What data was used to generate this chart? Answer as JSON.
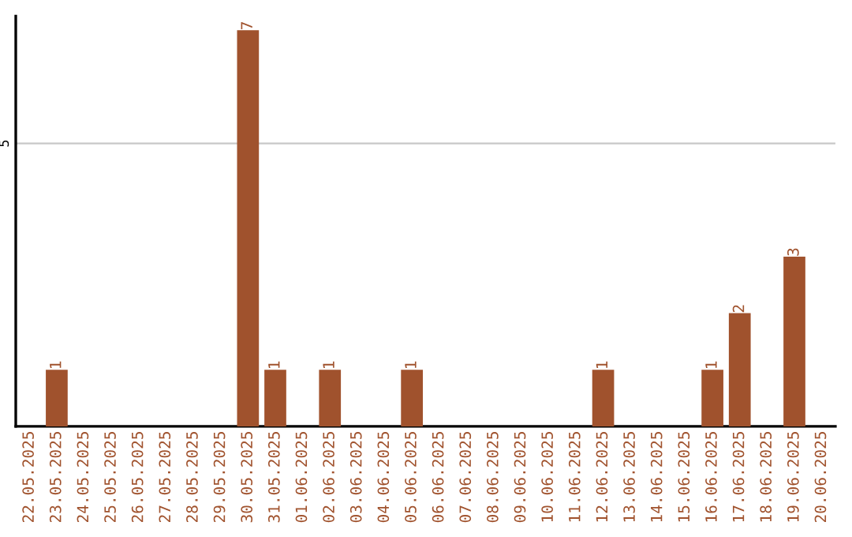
{
  "chart_data": {
    "type": "bar",
    "categories": [
      "22.05.2025",
      "23.05.2025",
      "24.05.2025",
      "25.05.2025",
      "26.05.2025",
      "27.05.2025",
      "28.05.2025",
      "29.05.2025",
      "30.05.2025",
      "31.05.2025",
      "01.06.2025",
      "02.06.2025",
      "03.06.2025",
      "04.06.2025",
      "05.06.2025",
      "06.06.2025",
      "07.06.2025",
      "08.06.2025",
      "09.06.2025",
      "10.06.2025",
      "11.06.2025",
      "12.06.2025",
      "13.06.2025",
      "14.06.2025",
      "15.06.2025",
      "16.06.2025",
      "17.06.2025",
      "18.06.2025",
      "19.06.2025",
      "20.06.2025"
    ],
    "values": [
      0,
      1,
      0,
      0,
      0,
      0,
      0,
      0,
      7,
      1,
      0,
      1,
      0,
      0,
      1,
      0,
      0,
      0,
      0,
      0,
      0,
      1,
      0,
      0,
      0,
      1,
      2,
      0,
      3,
      0
    ],
    "value_labels": [
      null,
      "1",
      null,
      null,
      null,
      null,
      null,
      null,
      "7",
      "1",
      null,
      "1",
      null,
      null,
      "1",
      null,
      null,
      null,
      null,
      null,
      null,
      "1",
      null,
      null,
      null,
      "1",
      "2",
      null,
      "3",
      null
    ],
    "color": "#a0522d",
    "ylim": [
      0,
      7.25
    ],
    "yticks": [
      5
    ],
    "grid": "y"
  }
}
